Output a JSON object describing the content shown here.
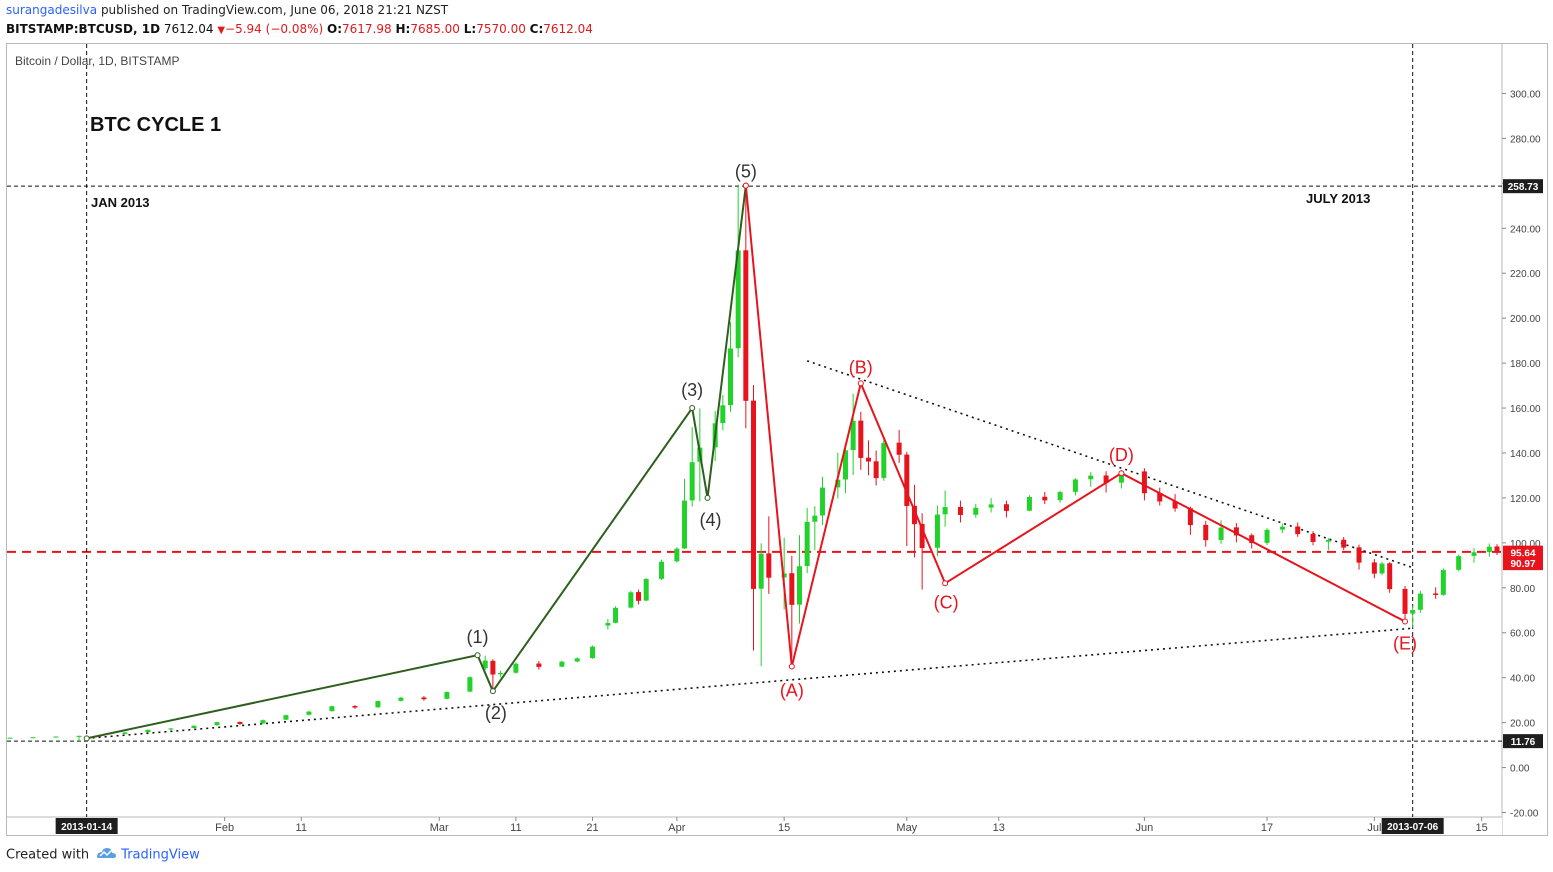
{
  "header": {
    "publisher": "surangadesilva",
    "published_text": "published on TradingView.com, June 06, 2018 21:21 NZST",
    "symbol": "BITSTAMP:BTCUSD, 1D",
    "last": "7612.04",
    "change": "−5.94 (−0.08%)",
    "o_label": "O:",
    "o_value": "7617.98",
    "h_label": "H:",
    "h_value": "7685.00",
    "l_label": "L:",
    "l_value": "7570.00",
    "c_label": "C:",
    "c_value": "7612.04"
  },
  "chart_title": "Bitcoin / Dollar, 1D, BITSTAMP",
  "annotations": {
    "cycle": "BTC CYCLE 1",
    "start_month": "JAN 2013",
    "end_month": "JULY 2013"
  },
  "footer": {
    "created_with": "Created with",
    "brand": "TradingView"
  },
  "colors": {
    "up": "#23d12b",
    "down": "#e8141d",
    "impulse": "#2e5f1f",
    "correction": "#e8141d",
    "support": "#e8141d"
  },
  "chart_data": {
    "type": "candlestick",
    "title": "Bitcoin / Dollar, 1D, BITSTAMP",
    "x_range": [
      "2013-01-04",
      "2013-07-17"
    ],
    "ylim": [
      -22,
      322
    ],
    "y_ticks": [
      -20,
      0,
      20,
      40,
      60,
      80,
      100,
      120,
      140,
      160,
      180,
      200,
      220,
      240,
      260,
      280,
      300
    ],
    "y_tick_labels": [
      "-20.00",
      "0.00",
      "20.00",
      "40.00",
      "60.00",
      "80.00",
      "100.00",
      "120.00",
      "140.00",
      "160.00",
      "180.00",
      "200.00",
      "220.00",
      "240.00",
      "260.00",
      "280.00",
      "300.00"
    ],
    "x_ticks": [
      {
        "date": "2013-02-01",
        "label": "Feb"
      },
      {
        "date": "2013-02-11",
        "label": "11"
      },
      {
        "date": "2013-03-01",
        "label": "Mar"
      },
      {
        "date": "2013-03-11",
        "label": "11"
      },
      {
        "date": "2013-03-21",
        "label": "21"
      },
      {
        "date": "2013-04-01",
        "label": "Apr"
      },
      {
        "date": "2013-04-15",
        "label": "15"
      },
      {
        "date": "2013-05-01",
        "label": "May"
      },
      {
        "date": "2013-05-13",
        "label": "13"
      },
      {
        "date": "2013-06-01",
        "label": "Jun"
      },
      {
        "date": "2013-06-17",
        "label": "17"
      },
      {
        "date": "2013-07-01",
        "label": "Jul"
      },
      {
        "date": "2013-07-15",
        "label": "15"
      }
    ],
    "series": [
      {
        "name": "BTCUSD",
        "points": [
          [
            "2013-01-04",
            13.3,
            13.4,
            13.2,
            13.3
          ],
          [
            "2013-01-07",
            13.4,
            13.6,
            13.3,
            13.5
          ],
          [
            "2013-01-10",
            13.6,
            13.9,
            13.5,
            13.8
          ],
          [
            "2013-01-13",
            13.9,
            14.2,
            11.8,
            14.1
          ],
          [
            "2013-01-16",
            14.2,
            14.8,
            14.1,
            14.7
          ],
          [
            "2013-01-19",
            14.9,
            15.8,
            14.8,
            15.6
          ],
          [
            "2013-01-22",
            15.7,
            16.9,
            15.6,
            16.8
          ],
          [
            "2013-01-25",
            17.0,
            17.6,
            16.6,
            17.4
          ],
          [
            "2013-01-28",
            17.6,
            18.8,
            17.4,
            18.6
          ],
          [
            "2013-01-31",
            18.9,
            20.4,
            18.6,
            20.2
          ],
          [
            "2013-02-03",
            20.3,
            20.5,
            18.9,
            19.4
          ],
          [
            "2013-02-06",
            19.6,
            21.4,
            19.4,
            21.1
          ],
          [
            "2013-02-09",
            21.3,
            23.6,
            21.2,
            23.3
          ],
          [
            "2013-02-12",
            23.5,
            25.2,
            23.2,
            24.9
          ],
          [
            "2013-02-15",
            25.1,
            27.5,
            24.9,
            27.3
          ],
          [
            "2013-02-18",
            27.4,
            27.8,
            26.1,
            26.7
          ],
          [
            "2013-02-21",
            26.8,
            29.8,
            26.6,
            29.6
          ],
          [
            "2013-02-24",
            29.7,
            31.4,
            29.4,
            31.1
          ],
          [
            "2013-02-27",
            31.2,
            31.8,
            29.8,
            30.4
          ],
          [
            "2013-03-02",
            30.6,
            33.9,
            30.4,
            33.6
          ],
          [
            "2013-03-05",
            33.8,
            40.6,
            33.6,
            40.2
          ],
          [
            "2013-03-07",
            44.2,
            49.8,
            43.4,
            47.6
          ],
          [
            "2013-03-08",
            47.5,
            48.2,
            33.8,
            41.4
          ],
          [
            "2013-03-09",
            41.5,
            43.1,
            40.2,
            42.1
          ],
          [
            "2013-03-11",
            42.2,
            46.8,
            41.8,
            46.2
          ],
          [
            "2013-03-14",
            46.3,
            47.4,
            43.6,
            44.8
          ],
          [
            "2013-03-17",
            44.9,
            47.6,
            44.6,
            47.1
          ],
          [
            "2013-03-19",
            47.2,
            49.1,
            46.8,
            48.6
          ],
          [
            "2013-03-21",
            48.7,
            54.3,
            48.4,
            53.8
          ],
          [
            "2013-03-23",
            63.2,
            66.1,
            61.4,
            64.3
          ],
          [
            "2013-03-24",
            64.4,
            71.8,
            64.2,
            71.1
          ],
          [
            "2013-03-26",
            71.2,
            78.6,
            70.8,
            78.0
          ],
          [
            "2013-03-27",
            78.1,
            79.2,
            72.6,
            74.2
          ],
          [
            "2013-03-28",
            74.3,
            84.3,
            74.1,
            83.9
          ],
          [
            "2013-03-30",
            84.0,
            92.5,
            83.4,
            91.6
          ],
          [
            "2013-04-01",
            91.8,
            98.1,
            91.3,
            97.4
          ],
          [
            "2013-04-02",
            97.5,
            128.5,
            97.2,
            118.8
          ],
          [
            "2013-04-03",
            118.9,
            151.5,
            116.1,
            135.9
          ],
          [
            "2013-04-04",
            136.1,
            159.8,
            118.5,
            142.4
          ],
          [
            "2013-04-06",
            142.5,
            158.7,
            136.3,
            153.2
          ],
          [
            "2013-04-07",
            153.3,
            165.8,
            150.1,
            161.2
          ],
          [
            "2013-04-08",
            161.3,
            198.2,
            158.3,
            186.5
          ],
          [
            "2013-04-09",
            186.6,
            259.4,
            182.6,
            230.1
          ],
          [
            "2013-04-10",
            230.2,
            258.7,
            151.0,
            163.2
          ],
          [
            "2013-04-11",
            163.3,
            170.2,
            52.1,
            79.5
          ],
          [
            "2013-04-12",
            79.6,
            99.8,
            45.1,
            95.2
          ],
          [
            "2013-04-13",
            95.3,
            111.8,
            77.3,
            84.5
          ],
          [
            "2013-04-15",
            84.6,
            102.3,
            70.4,
            86.4
          ],
          [
            "2013-04-16",
            86.5,
            94.2,
            48.9,
            72.4
          ],
          [
            "2013-04-17",
            72.5,
            103.4,
            64.1,
            89.6
          ],
          [
            "2013-04-18",
            89.7,
            115.6,
            86.5,
            109.3
          ],
          [
            "2013-04-19",
            109.4,
            116.3,
            96.7,
            112.1
          ],
          [
            "2013-04-20",
            112.2,
            129.4,
            107.9,
            124.6
          ],
          [
            "2013-04-22",
            124.7,
            140.1,
            119.8,
            128.1
          ],
          [
            "2013-04-23",
            128.2,
            143.5,
            122.1,
            141.2
          ],
          [
            "2013-04-24",
            141.3,
            166.4,
            130.2,
            154.3
          ],
          [
            "2013-04-25",
            154.4,
            158.3,
            132.5,
            137.8
          ],
          [
            "2013-04-26",
            137.9,
            145.6,
            130.1,
            136.2
          ],
          [
            "2013-04-27",
            136.3,
            141.1,
            125.5,
            128.8
          ],
          [
            "2013-04-28",
            128.9,
            145.9,
            127.6,
            144.5
          ],
          [
            "2013-04-30",
            144.6,
            150.2,
            135.6,
            139.2
          ],
          [
            "2013-05-01",
            139.3,
            140.5,
            98.6,
            116.4
          ],
          [
            "2013-05-02",
            116.5,
            125.8,
            93.5,
            108.3
          ],
          [
            "2013-05-03",
            108.4,
            113.2,
            79.2,
            97.7
          ],
          [
            "2013-05-05",
            97.8,
            116.6,
            94.1,
            112.6
          ],
          [
            "2013-05-06",
            112.7,
            123.3,
            107.2,
            115.9
          ],
          [
            "2013-05-08",
            116.0,
            118.8,
            109.1,
            112.4
          ],
          [
            "2013-05-10",
            112.5,
            117.4,
            111.2,
            115.6
          ],
          [
            "2013-05-12",
            115.7,
            119.9,
            113.5,
            117.1
          ],
          [
            "2013-05-14",
            117.2,
            118.8,
            111.3,
            114.2
          ],
          [
            "2013-05-17",
            114.3,
            121.2,
            114.1,
            120.4
          ],
          [
            "2013-05-19",
            120.5,
            122.6,
            117.3,
            118.9
          ],
          [
            "2013-05-21",
            119.0,
            123.2,
            117.9,
            122.6
          ],
          [
            "2013-05-23",
            122.7,
            128.8,
            121.1,
            128.2
          ],
          [
            "2013-05-25",
            128.3,
            131.5,
            124.9,
            129.9
          ],
          [
            "2013-05-27",
            130.0,
            131.9,
            122.4,
            126.7
          ],
          [
            "2013-05-29",
            126.8,
            132.4,
            124.2,
            131.7
          ],
          [
            "2013-06-01",
            131.8,
            133.2,
            118.9,
            122.1
          ],
          [
            "2013-06-03",
            122.2,
            124.6,
            116.6,
            118.4
          ],
          [
            "2013-06-05",
            118.5,
            121.7,
            113.9,
            115.3
          ],
          [
            "2013-06-07",
            115.4,
            116.1,
            103.6,
            107.9
          ],
          [
            "2013-06-09",
            108.0,
            109.8,
            98.3,
            101.2
          ],
          [
            "2013-06-11",
            101.3,
            110.1,
            99.6,
            106.8
          ],
          [
            "2013-06-13",
            106.9,
            108.8,
            100.2,
            103.3
          ],
          [
            "2013-06-15",
            103.4,
            104.2,
            97.5,
            99.9
          ],
          [
            "2013-06-17",
            100.0,
            106.5,
            99.1,
            105.8
          ],
          [
            "2013-06-19",
            105.9,
            108.6,
            104.4,
            107.2
          ],
          [
            "2013-06-21",
            107.3,
            109.1,
            102.7,
            103.9
          ],
          [
            "2013-06-23",
            104.0,
            105.2,
            98.9,
            100.4
          ],
          [
            "2013-06-25",
            100.5,
            102.1,
            96.7,
            101.3
          ],
          [
            "2013-06-27",
            101.4,
            102.6,
            96.8,
            97.9
          ],
          [
            "2013-06-29",
            98.0,
            99.2,
            88.1,
            91.2
          ],
          [
            "2013-07-01",
            91.3,
            92.8,
            84.2,
            86.3
          ],
          [
            "2013-07-02",
            86.4,
            91.6,
            85.6,
            90.8
          ],
          [
            "2013-07-03",
            90.9,
            91.4,
            77.8,
            79.4
          ],
          [
            "2013-07-05",
            79.5,
            80.8,
            65.2,
            68.4
          ],
          [
            "2013-07-06",
            68.5,
            72.1,
            62.4,
            70.1
          ],
          [
            "2013-07-07",
            70.2,
            78.6,
            68.8,
            77.4
          ],
          [
            "2013-07-09",
            77.5,
            80.2,
            75.1,
            76.8
          ],
          [
            "2013-07-10",
            76.9,
            88.6,
            76.4,
            87.9
          ],
          [
            "2013-07-12",
            88.0,
            94.8,
            87.4,
            94.1
          ],
          [
            "2013-07-14",
            94.2,
            97.6,
            91.2,
            95.8
          ],
          [
            "2013-07-16",
            95.9,
            99.7,
            93.8,
            98.3
          ],
          [
            "2013-07-17",
            98.4,
            99.4,
            94.6,
            95.6
          ]
        ]
      }
    ],
    "wave_labels": [
      {
        "label": "(1)",
        "date": "2013-03-06",
        "price": 50.0
      },
      {
        "label": "(2)",
        "date": "2013-03-08",
        "price": 34.0
      },
      {
        "label": "(3)",
        "date": "2013-04-03",
        "price": 160.0
      },
      {
        "label": "(4)",
        "date": "2013-04-05",
        "price": 120.0
      },
      {
        "label": "(5)",
        "date": "2013-04-10",
        "price": 259.0
      },
      {
        "label": "(A)",
        "date": "2013-04-16",
        "price": 45.0
      },
      {
        "label": "(B)",
        "date": "2013-04-25",
        "price": 171.0
      },
      {
        "label": "(C)",
        "date": "2013-05-06",
        "price": 82.0
      },
      {
        "label": "(D)",
        "date": "2013-05-29",
        "price": 131.0
      },
      {
        "label": "(E)",
        "date": "2013-07-05",
        "price": 65.0
      }
    ],
    "impulse_path": [
      [
        "2013-01-14",
        13.0
      ],
      [
        "2013-03-06",
        50.0
      ],
      [
        "2013-03-08",
        34.0
      ],
      [
        "2013-04-03",
        160.0
      ],
      [
        "2013-04-05",
        120.0
      ],
      [
        "2013-04-10",
        259.0
      ]
    ],
    "correction_path": [
      [
        "2013-04-10",
        259.0
      ],
      [
        "2013-04-16",
        45.0
      ],
      [
        "2013-04-25",
        171.0
      ],
      [
        "2013-05-06",
        82.0
      ],
      [
        "2013-05-29",
        131.0
      ],
      [
        "2013-07-05",
        65.0
      ]
    ],
    "trendlines": [
      {
        "style": "dotted",
        "from": [
          "2013-01-14",
          13.0
        ],
        "to": [
          "2013-07-06",
          62.0
        ]
      },
      {
        "style": "dotted",
        "from": [
          "2013-04-18",
          181.0
        ],
        "to": [
          "2013-07-06",
          89.0
        ]
      }
    ],
    "hlines": [
      {
        "price": 258.73,
        "style": "dashed",
        "label": "258.73"
      },
      {
        "price": 11.76,
        "style": "dashed",
        "label": "11.76"
      },
      {
        "price": 96.0,
        "style": "dashed-red"
      }
    ],
    "vlines": [
      {
        "date": "2013-01-14",
        "label": "2013-01-14"
      },
      {
        "date": "2013-07-06",
        "label": "2013-07-06"
      }
    ],
    "price_tags": [
      {
        "label": "95.64",
        "price": 95.64
      },
      {
        "label": "90.97",
        "price": 90.97
      }
    ]
  }
}
